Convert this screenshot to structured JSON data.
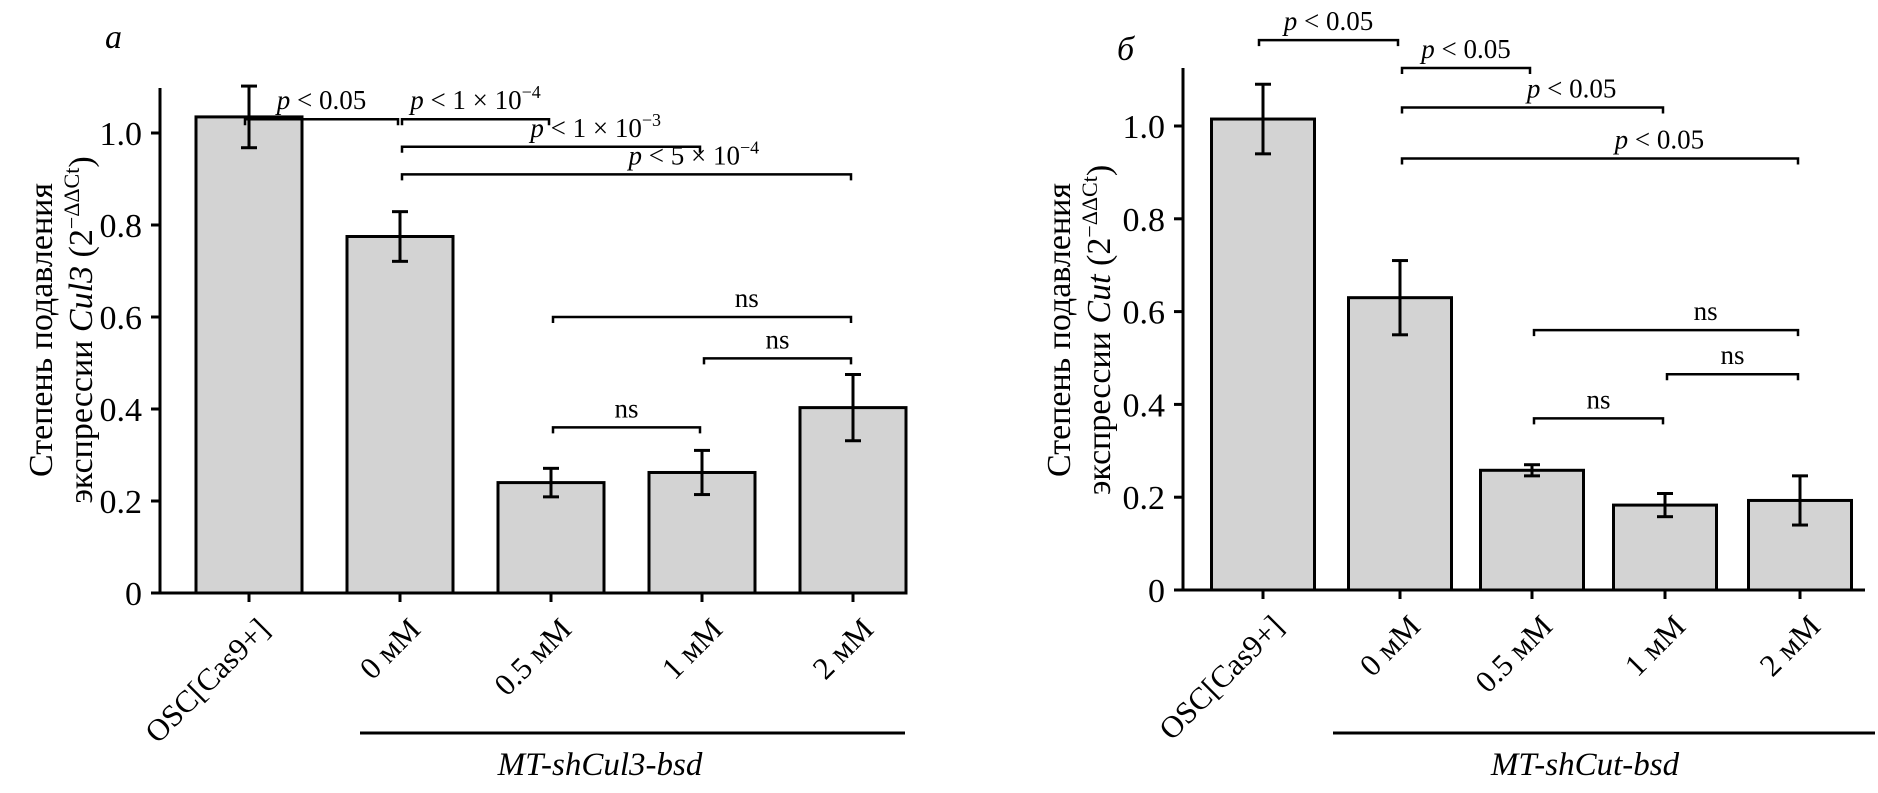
{
  "chart_data": [
    {
      "type": "bar",
      "panel_label": "а",
      "ylabel_line1": "Степень подавления",
      "ylabel_line2_prefix": "экспрессии ",
      "ylabel_gene": "Cul3",
      "ylabel_suffix": " (2",
      "ylabel_superscript": "−ΔΔCt",
      "ylabel_close": ")",
      "categories": [
        "OSC[Cas9+]",
        "0 мМ",
        "0.5 мМ",
        "1 мМ",
        "2 мМ"
      ],
      "values": [
        1.035,
        0.775,
        0.24,
        0.262,
        0.403
      ],
      "errors": [
        0.067,
        0.054,
        0.031,
        0.048,
        0.072
      ],
      "ylim": [
        0,
        1.1
      ],
      "yticks": [
        0,
        0.2,
        0.4,
        0.6,
        0.8,
        1.0
      ],
      "ytick_labels": [
        "0",
        "0.2",
        "0.4",
        "0.6",
        "0.8",
        "1.0"
      ],
      "bar_color": "#d3d3d3",
      "group_label": "MT-shCul3-bsd",
      "group_span": [
        1,
        4
      ],
      "significance": [
        {
          "from": 0,
          "to": 1,
          "level": 1.03,
          "label": "p < 0.05",
          "p": "p",
          "rest": " < 0.05",
          "sup": ""
        },
        {
          "from": 1,
          "to": 2,
          "level": 1.03,
          "label": "p < 1 × 10−4",
          "p": "p",
          "rest": " < 1 × 10",
          "sup": "−4"
        },
        {
          "from": 1,
          "to": 3,
          "level": 0.97,
          "label": "p < 1 × 10−3",
          "p": "p",
          "rest": " < 1 × 10",
          "sup": "−3"
        },
        {
          "from": 1,
          "to": 4,
          "level": 0.91,
          "label": "p < 5 × 10−4",
          "p": "p",
          "rest": " < 5 × 10",
          "sup": "−4"
        },
        {
          "from": 2,
          "to": 4,
          "level": 0.6,
          "label": "ns",
          "p": "",
          "rest": "ns",
          "sup": ""
        },
        {
          "from": 3,
          "to": 4,
          "level": 0.51,
          "label": "ns",
          "p": "",
          "rest": "ns",
          "sup": ""
        },
        {
          "from": 2,
          "to": 3,
          "level": 0.36,
          "label": "ns",
          "p": "",
          "rest": "ns",
          "sup": ""
        }
      ]
    },
    {
      "type": "bar",
      "panel_label": "б",
      "ylabel_line1": "Степень подавления",
      "ylabel_line2_prefix": "экспрессии ",
      "ylabel_gene": "Cut",
      "ylabel_suffix": " (2",
      "ylabel_superscript": "−ΔΔCt",
      "ylabel_close": ")",
      "categories": [
        "OSC[Cas9+]",
        "0 мМ",
        "0.5 мМ",
        "1 мМ",
        "2 мМ"
      ],
      "values": [
        1.015,
        0.63,
        0.258,
        0.183,
        0.193
      ],
      "errors": [
        0.075,
        0.08,
        0.012,
        0.025,
        0.053
      ],
      "ylim": [
        0,
        1.15
      ],
      "yticks": [
        0,
        0.2,
        0.4,
        0.6,
        0.8,
        1.0
      ],
      "ytick_labels": [
        "0",
        "0.2",
        "0.4",
        "0.6",
        "0.8",
        "1.0"
      ],
      "bar_color": "#d3d3d3",
      "group_label": "MT-shCut-bsd",
      "group_span": [
        1,
        4
      ],
      "significance": [
        {
          "from": 0,
          "to": 1,
          "level": 1.185,
          "label": "p < 0.05",
          "p": "p",
          "rest": " < 0.05",
          "sup": ""
        },
        {
          "from": 1,
          "to": 2,
          "level": 1.125,
          "label": "p < 0.05",
          "p": "p",
          "rest": " < 0.05",
          "sup": ""
        },
        {
          "from": 1,
          "to": 3,
          "level": 1.04,
          "label": "p < 0.05",
          "p": "p",
          "rest": " < 0.05",
          "sup": ""
        },
        {
          "from": 1,
          "to": 4,
          "level": 0.93,
          "label": "p < 0.05",
          "p": "p",
          "rest": " < 0.05",
          "sup": ""
        },
        {
          "from": 2,
          "to": 4,
          "level": 0.56,
          "label": "ns",
          "p": "",
          "rest": "ns",
          "sup": ""
        },
        {
          "from": 3,
          "to": 4,
          "level": 0.465,
          "label": "ns",
          "p": "",
          "rest": "ns",
          "sup": ""
        },
        {
          "from": 2,
          "to": 3,
          "level": 0.37,
          "label": "ns",
          "p": "",
          "rest": "ns",
          "sup": ""
        }
      ]
    }
  ]
}
